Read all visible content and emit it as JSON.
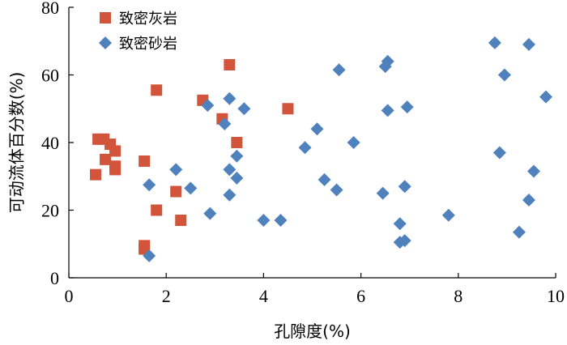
{
  "chart_data": {
    "type": "scatter",
    "title": "",
    "xlabel": "孔隙度(%)",
    "ylabel": "可动流体百分数(%)",
    "xlim": [
      0,
      10
    ],
    "ylim": [
      0,
      80
    ],
    "x_ticks": [
      0,
      2,
      4,
      6,
      8,
      10
    ],
    "y_ticks": [
      0,
      20,
      40,
      60,
      80
    ],
    "grid": false,
    "legend_position": "top-left",
    "series": [
      {
        "name": "致密灰岩",
        "marker": "square",
        "color": "#D2543B",
        "points": [
          [
            0.55,
            30.5
          ],
          [
            0.6,
            41
          ],
          [
            0.72,
            41
          ],
          [
            0.75,
            35
          ],
          [
            0.85,
            39.5
          ],
          [
            0.95,
            37.5
          ],
          [
            0.95,
            33
          ],
          [
            0.95,
            32
          ],
          [
            1.55,
            34.5
          ],
          [
            1.55,
            9.5
          ],
          [
            1.55,
            8.5
          ],
          [
            1.8,
            55.5
          ],
          [
            1.8,
            20
          ],
          [
            2.2,
            25.5
          ],
          [
            2.3,
            17
          ],
          [
            2.75,
            52.5
          ],
          [
            3.15,
            47
          ],
          [
            3.3,
            63
          ],
          [
            3.45,
            40
          ],
          [
            4.5,
            50
          ]
        ]
      },
      {
        "name": "致密砂岩",
        "marker": "diamond",
        "color": "#4F81BD",
        "points": [
          [
            1.65,
            6.5
          ],
          [
            1.65,
            27.5
          ],
          [
            2.2,
            32
          ],
          [
            2.5,
            26.5
          ],
          [
            2.85,
            51
          ],
          [
            2.9,
            19
          ],
          [
            3.2,
            45.5
          ],
          [
            3.3,
            53
          ],
          [
            3.3,
            32
          ],
          [
            3.3,
            24.5
          ],
          [
            3.45,
            36
          ],
          [
            3.45,
            29.5
          ],
          [
            3.6,
            50
          ],
          [
            4.0,
            17
          ],
          [
            4.35,
            17
          ],
          [
            4.85,
            38.5
          ],
          [
            5.1,
            44
          ],
          [
            5.25,
            29
          ],
          [
            5.5,
            26
          ],
          [
            5.55,
            61.5
          ],
          [
            5.85,
            40
          ],
          [
            6.45,
            25
          ],
          [
            6.5,
            62.5
          ],
          [
            6.55,
            64
          ],
          [
            6.55,
            49.5
          ],
          [
            6.8,
            16
          ],
          [
            6.8,
            10.5
          ],
          [
            6.9,
            11
          ],
          [
            6.9,
            27
          ],
          [
            6.95,
            50.5
          ],
          [
            7.8,
            18.5
          ],
          [
            8.75,
            69.5
          ],
          [
            8.85,
            37
          ],
          [
            8.95,
            60
          ],
          [
            9.25,
            13.5
          ],
          [
            9.45,
            69
          ],
          [
            9.45,
            23
          ],
          [
            9.55,
            31.5
          ],
          [
            9.8,
            53.5
          ]
        ]
      }
    ]
  }
}
